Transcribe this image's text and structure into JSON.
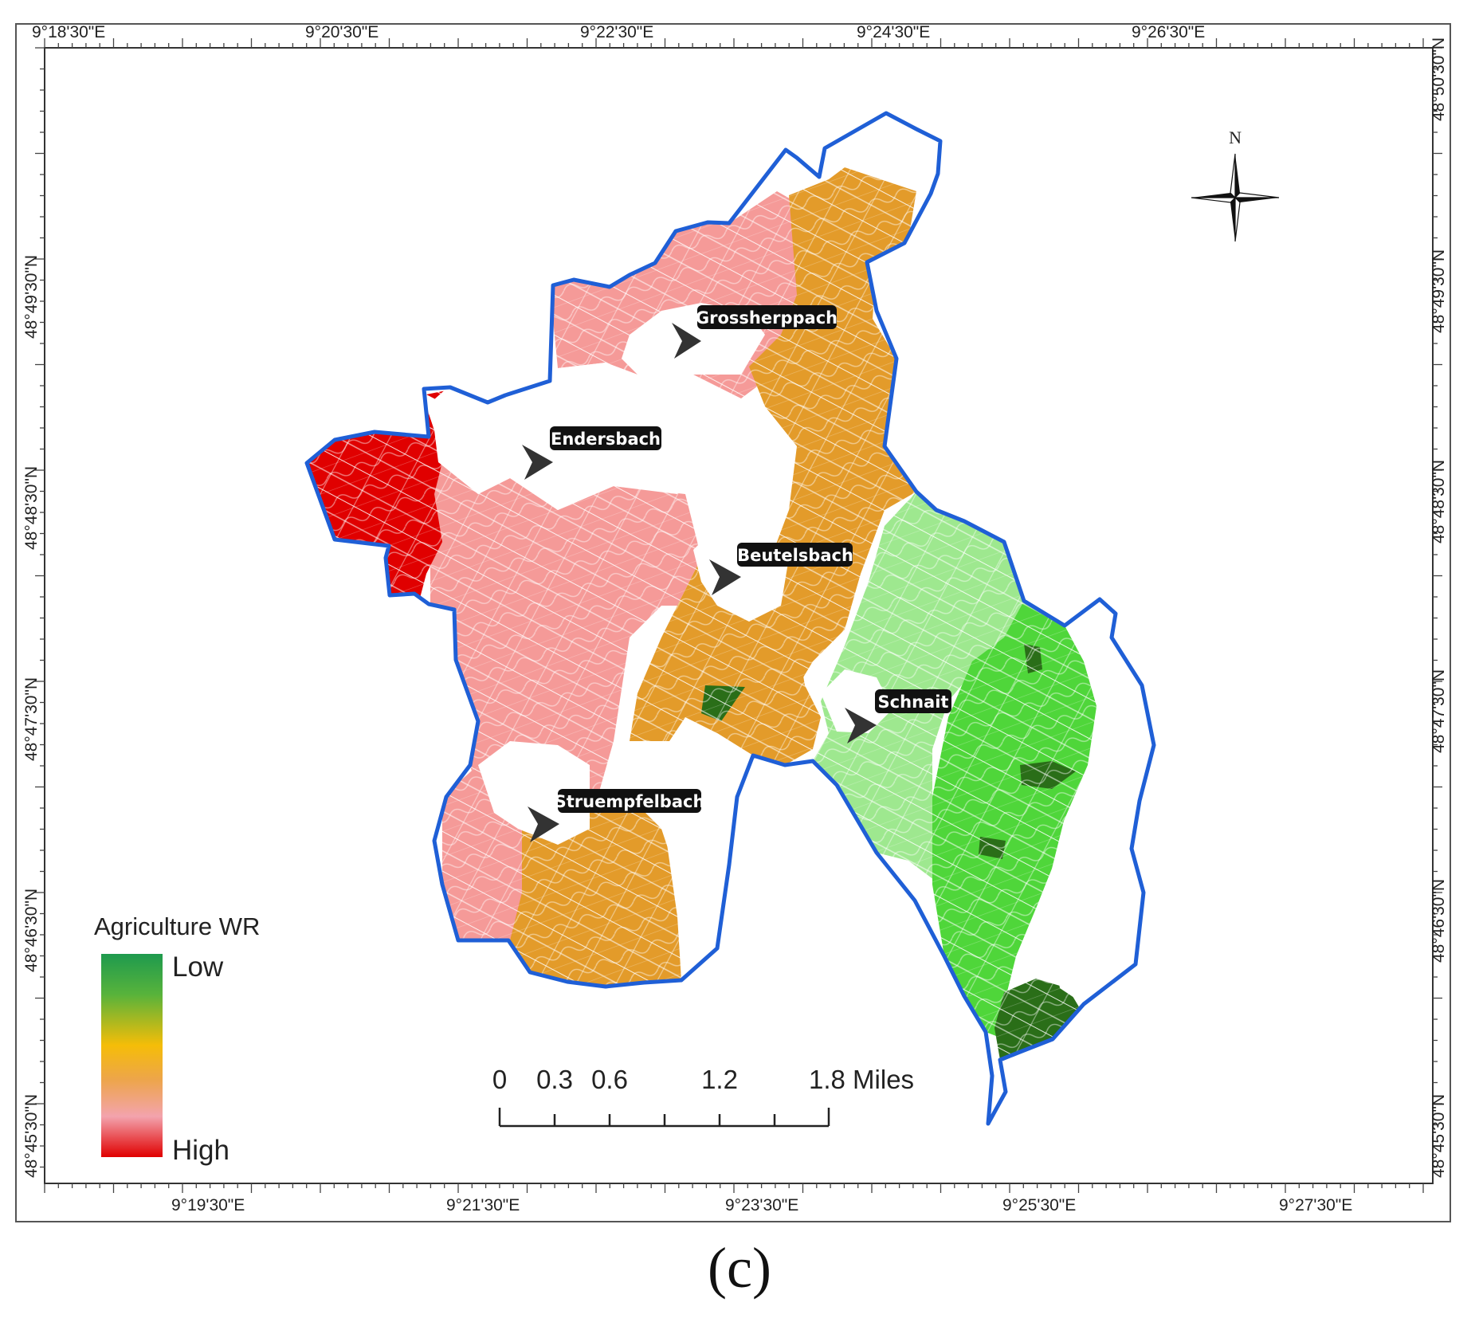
{
  "map": {
    "top_ticks": [
      "9°18'30\"E",
      "9°20'30\"E",
      "9°22'30\"E",
      "9°24'30\"E",
      "9°26'30\"E"
    ],
    "bottom_ticks": [
      "9°19'30\"E",
      "9°21'30\"E",
      "9°23'30\"E",
      "9°25'30\"E",
      "9°27'30\"E"
    ],
    "left_ticks": [
      "48°49'30\"N",
      "48°48'30\"N",
      "48°47'30\"N",
      "48°46'30\"N",
      "48°45'30\"N"
    ],
    "right_ticks": [
      "48°50'30\"N",
      "48°49'30\"N",
      "48°48'30\"N",
      "48°47'30\"N",
      "48°46'30\"N",
      "48°45'30\"N"
    ],
    "north_label": "N",
    "towns": [
      "Grossherppach",
      "Endersbach",
      "Beutelsbach",
      "Schnait",
      "Struempfelbach"
    ],
    "colors": {
      "boundary": "#1f5fd6",
      "high": "#e00000",
      "pink": "#f59a98",
      "orange": "#e39b2a",
      "light_green": "#9ee88f",
      "green": "#4fd63a",
      "dark_green": "#2a6e18"
    }
  },
  "legend": {
    "title": "Agriculture WR",
    "low_label": "Low",
    "high_label": "High"
  },
  "scale_bar": {
    "labels": [
      "0",
      "0.3",
      "0.6",
      "1.2",
      "1.8 Miles"
    ]
  },
  "caption": "(c)"
}
